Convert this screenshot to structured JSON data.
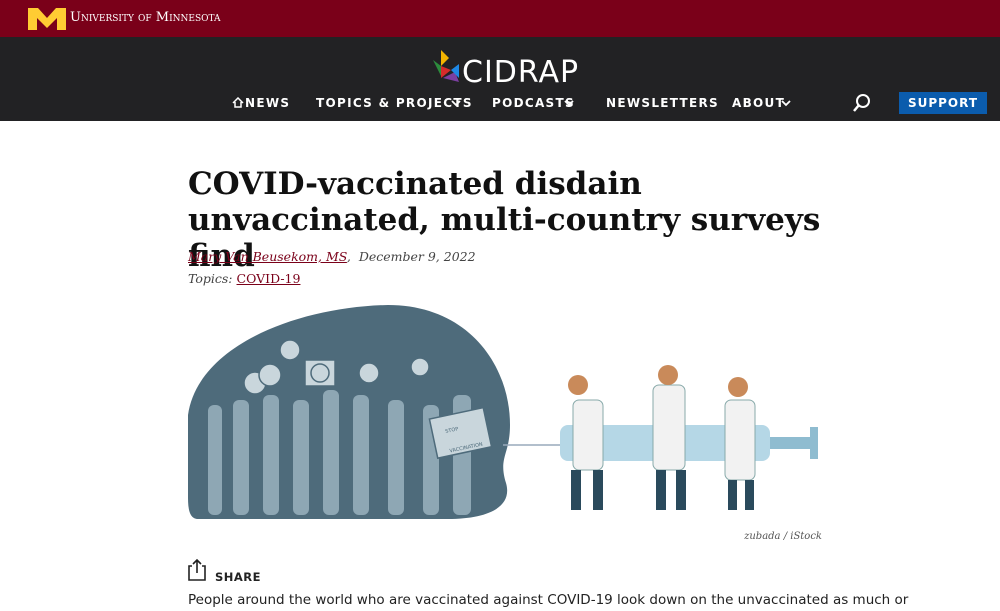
{
  "header": {
    "university": "University of Minnesota",
    "logo": "CIDRAP",
    "nav": [
      "NEWS",
      "TOPICS & PROJECTS",
      "PODCASTS",
      "NEWSLETTERS",
      "ABOUT"
    ],
    "support": "SUPPORT"
  },
  "article": {
    "title": "COVID-vaccinated disdain unvaccinated, multi-country surveys find",
    "author": "Mary Van Beusekom, MS",
    "byline_separator": ",",
    "date": "December 9, 2022",
    "topics_label": "Topics:",
    "topic": "COVID-19",
    "sign_text": [
      "STOP",
      "VACCINATION"
    ],
    "image_credit": "zubada / iStock",
    "share": "SHARE",
    "body": "People around the world who are vaccinated against COVID-19 look down on the unvaccinated as much or"
  }
}
